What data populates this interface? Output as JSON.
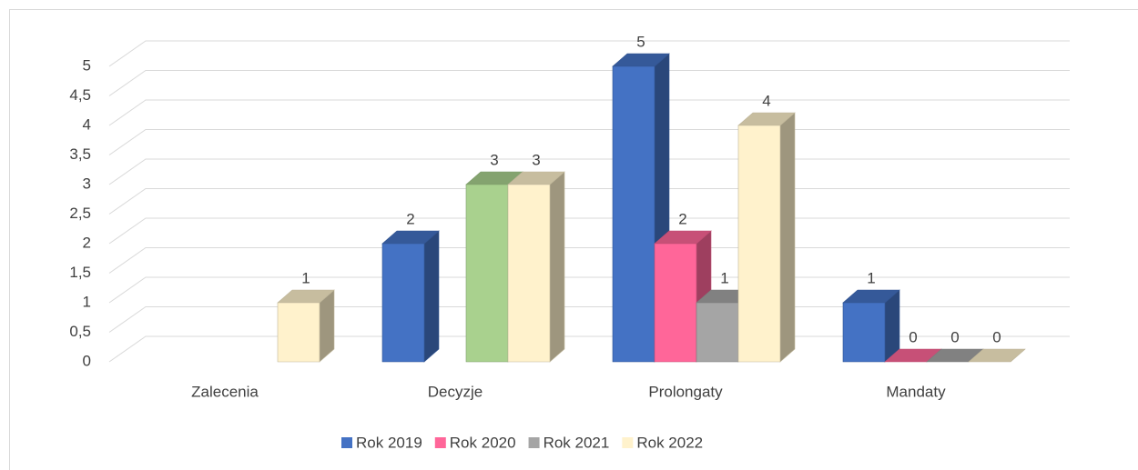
{
  "chart_data": {
    "type": "bar3d",
    "categories": [
      "Zalecenia",
      "Decyzje",
      "Prolongaty",
      "Mandaty"
    ],
    "series": [
      {
        "name": "Rok 2019",
        "color": "#4472c4",
        "values": [
          null,
          2,
          5,
          1
        ]
      },
      {
        "name": "Rok 2020",
        "color": "#ff6699",
        "values": [
          null,
          null,
          2,
          0
        ]
      },
      {
        "name": "Rok 2021",
        "color": "#a5a5a5",
        "point_colors": [
          "#a5a5a5",
          "#a9d18e",
          "#a5a5a5",
          "#a5a5a5"
        ],
        "values": [
          null,
          3,
          1,
          0
        ]
      },
      {
        "name": "Rok 2022",
        "color": "#fff2cc",
        "values": [
          1,
          3,
          4,
          0
        ]
      }
    ],
    "ylim": [
      0,
      5
    ],
    "yticks": [
      0,
      {
        "value": 0.5,
        "label": "0,5"
      },
      1,
      {
        "value": 1.5,
        "label": "1,5"
      },
      2,
      {
        "value": 2.5,
        "label": "2,5"
      },
      3,
      {
        "value": 3.5,
        "label": "3,5"
      },
      4,
      {
        "value": 4.5,
        "label": "4,5"
      },
      5
    ],
    "grid": true,
    "legend": "bottom"
  }
}
